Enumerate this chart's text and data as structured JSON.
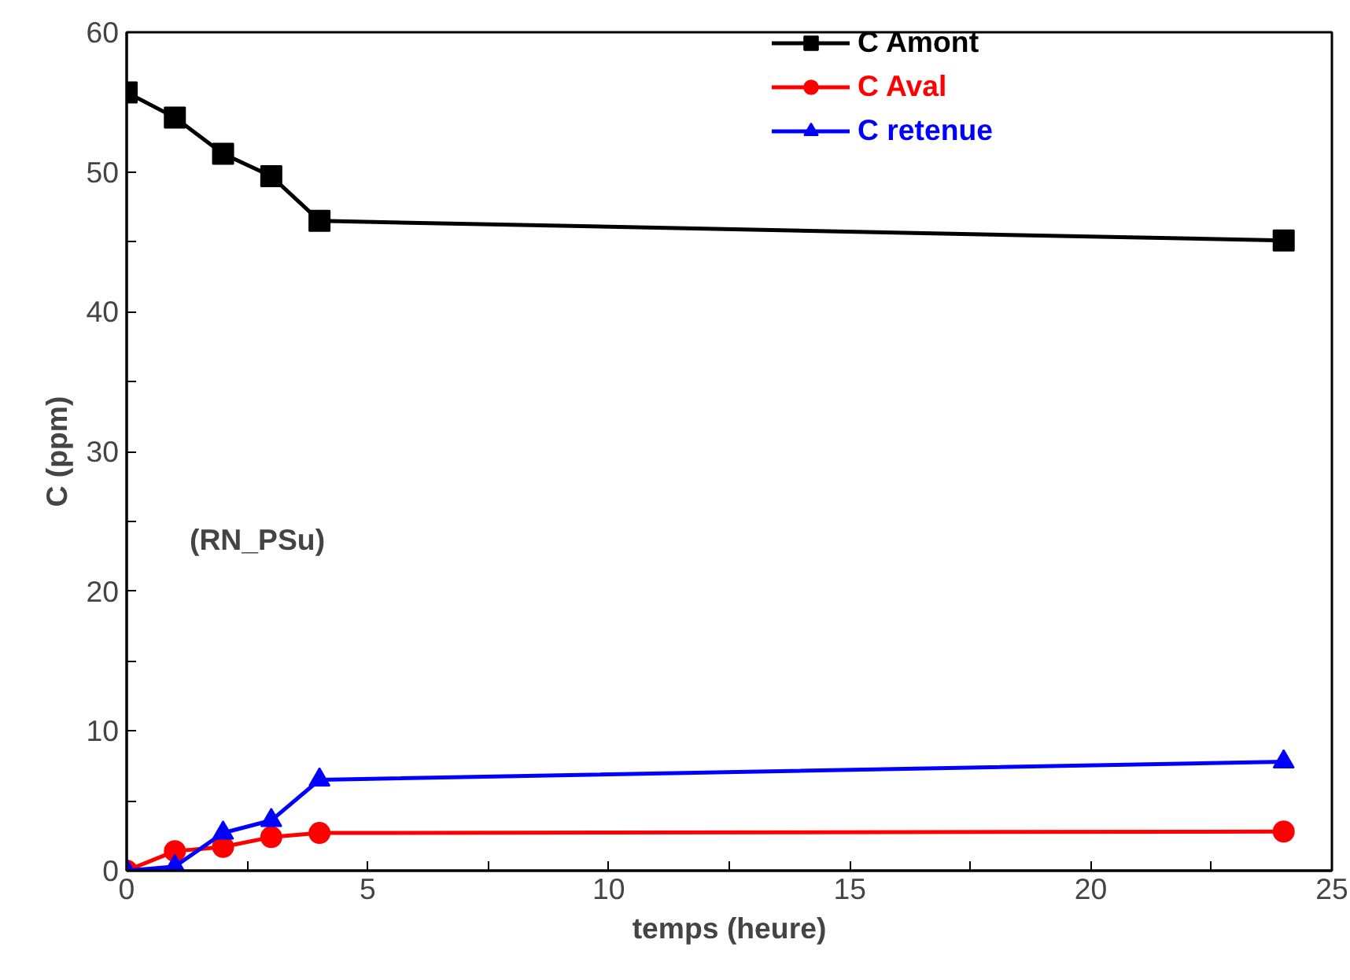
{
  "chart_data": {
    "type": "line",
    "xlabel": "temps (heure)",
    "ylabel": "C (ppm)",
    "annotations": [
      "(RN_PSu)"
    ],
    "x": [
      0,
      1,
      2,
      3,
      4,
      24
    ],
    "series": [
      {
        "name": "C Amont",
        "color": "#000000",
        "marker": "square",
        "values": [
          55.7,
          53.9,
          51.3,
          49.7,
          46.5,
          45.1
        ]
      },
      {
        "name": "C Aval",
        "color": "#ff0000",
        "marker": "circle",
        "values": [
          0,
          1.4,
          1.7,
          2.4,
          2.7,
          2.8
        ]
      },
      {
        "name": "C retenue",
        "color": "#0000ff",
        "marker": "triangle",
        "values": [
          0,
          0.3,
          2.7,
          3.6,
          6.5,
          7.8
        ]
      }
    ],
    "xlim": [
      0,
      25
    ],
    "ylim": [
      0,
      60
    ],
    "xticks": [
      0,
      {
        "value": 2.5,
        "label": null
      },
      5,
      {
        "value": 7.5,
        "label": null
      },
      10,
      {
        "value": 12.5,
        "label": null
      },
      15,
      {
        "value": 17.5,
        "label": null
      },
      20,
      {
        "value": 22.5,
        "label": null
      },
      25
    ],
    "yticks": [
      0,
      {
        "value": 5,
        "label": null
      },
      10,
      {
        "value": 15,
        "label": null
      },
      20,
      {
        "value": 25,
        "label": null
      },
      30,
      {
        "value": 35,
        "label": null
      },
      40,
      {
        "value": 45,
        "label": null
      },
      50,
      {
        "value": 55,
        "label": null
      },
      60
    ],
    "grid": false,
    "legend": "top right",
    "line_style": "solid"
  }
}
